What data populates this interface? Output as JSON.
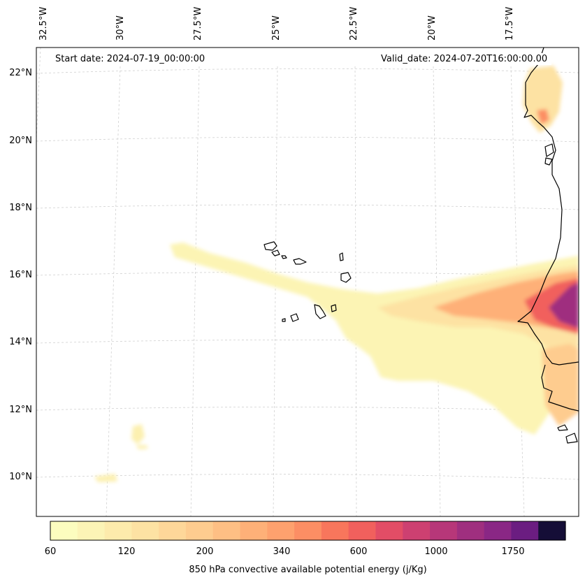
{
  "map": {
    "start_label": "Start date: 2024-07-19_00:00:00",
    "valid_label": "Valid_date: 2024-07-20T16:00:00.00",
    "lon_labels": [
      "32.5°W",
      "30°W",
      "27.5°W",
      "25°W",
      "22.5°W",
      "20°W",
      "17.5°W"
    ],
    "lat_labels": [
      "22°N",
      "20°N",
      "18°N",
      "16°N",
      "14°N",
      "12°N",
      "10°N"
    ],
    "gridlines": true,
    "coastline_color": "#000000"
  },
  "colorbar": {
    "label": "850 hPa convective available potential energy (j/Kg)",
    "tick_labels": [
      "60",
      "120",
      "200",
      "340",
      "600",
      "1000",
      "1750"
    ],
    "colors": [
      "#fcfdbf",
      "#fcf4b6",
      "#fdebac",
      "#fde2a3",
      "#fed799",
      "#fecc8f",
      "#febf84",
      "#feb078",
      "#fea16e",
      "#fc8e64",
      "#f8765c",
      "#f1605d",
      "#e24d66",
      "#cd4071",
      "#b73779",
      "#9f2f7f",
      "#8a2785",
      "#6b1d81",
      "#150e37"
    ]
  },
  "chart_data": {
    "type": "heatmap",
    "variable": "850 hPa convective available potential energy",
    "units": "j/Kg",
    "start_date": "2024-07-19_00:00:00",
    "valid_date": "2024-07-20T16:00:00.00",
    "lon_ticks": [
      -32.5,
      -30,
      -27.5,
      -25,
      -22.5,
      -20,
      -17.5
    ],
    "lat_ticks": [
      22,
      20,
      18,
      16,
      14,
      12,
      10
    ],
    "colorbar_ticks": [
      60,
      120,
      200,
      340,
      600,
      1000,
      1750
    ]
  }
}
